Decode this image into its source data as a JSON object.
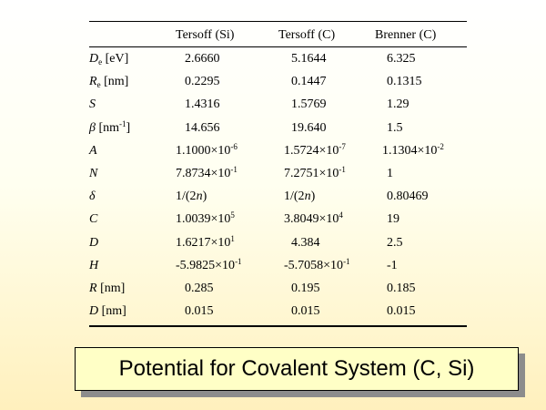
{
  "table": {
    "columns": [
      "Tersoff (Si)",
      "Tersoff (C)",
      "Brenner (C)"
    ],
    "rows": [
      {
        "param": {
          "sym": "D",
          "sub": "e",
          "unit": " [eV]",
          "unit_pre": "",
          "unit_sup": "",
          "unit_post": ""
        },
        "v": [
          {
            "t": "2.6660"
          },
          {
            "t": "5.1644"
          },
          {
            "t": "6.325"
          }
        ]
      },
      {
        "param": {
          "sym": "R",
          "sub": "e",
          "unit": " [nm]",
          "unit_pre": "",
          "unit_sup": "",
          "unit_post": ""
        },
        "v": [
          {
            "t": "0.2295"
          },
          {
            "t": "0.1447"
          },
          {
            "t": "0.1315"
          }
        ]
      },
      {
        "param": {
          "sym": "S",
          "sub": "",
          "unit": "",
          "unit_pre": "",
          "unit_sup": "",
          "unit_post": ""
        },
        "v": [
          {
            "t": "1.4316"
          },
          {
            "t": "1.5769"
          },
          {
            "t": "1.29"
          }
        ]
      },
      {
        "param": {
          "sym": "β",
          "sub": "",
          "unit": "",
          "unit_pre": " [nm",
          "unit_sup": "-1",
          "unit_post": "]"
        },
        "v": [
          {
            "t": "14.656"
          },
          {
            "t": "19.640"
          },
          {
            "t": "1.5"
          }
        ]
      },
      {
        "param": {
          "sym": "A",
          "sub": "",
          "unit": "",
          "unit_pre": "",
          "unit_sup": "",
          "unit_post": ""
        },
        "v": [
          {
            "m": "1.1000×10",
            "e": "-6"
          },
          {
            "m": "1.5724×10",
            "e": "-7"
          },
          {
            "m": "1.1304×10",
            "e": "-2"
          }
        ]
      },
      {
        "param": {
          "sym": "N",
          "sub": "",
          "unit": "",
          "unit_pre": "",
          "unit_sup": "",
          "unit_post": ""
        },
        "v": [
          {
            "m": "7.8734×10",
            "e": "-1"
          },
          {
            "m": "7.2751×10",
            "e": "-1"
          },
          {
            "t": "1"
          }
        ]
      },
      {
        "param": {
          "sym": "δ",
          "sub": "",
          "unit": "",
          "unit_pre": "",
          "unit_sup": "",
          "unit_post": ""
        },
        "v": [
          {
            "pre": "1/(2",
            "it": "n",
            "post": ")"
          },
          {
            "pre": "1/(2",
            "it": "n",
            "post": ")"
          },
          {
            "t": "0.80469"
          }
        ]
      },
      {
        "param": {
          "sym": "C",
          "sub": "",
          "unit": "",
          "unit_pre": "",
          "unit_sup": "",
          "unit_post": ""
        },
        "v": [
          {
            "m": "1.0039×10",
            "e": "5"
          },
          {
            "m": "3.8049×10",
            "e": "4"
          },
          {
            "t": "19"
          }
        ]
      },
      {
        "param": {
          "sym": "D",
          "sub": "",
          "unit": "",
          "unit_pre": "",
          "unit_sup": "",
          "unit_post": ""
        },
        "v": [
          {
            "m": "1.6217×10",
            "e": "1"
          },
          {
            "t": "4.384"
          },
          {
            "t": "2.5"
          }
        ]
      },
      {
        "param": {
          "sym": "H",
          "sub": "",
          "unit": "",
          "unit_pre": "",
          "unit_sup": "",
          "unit_post": ""
        },
        "v": [
          {
            "m": "-5.9825×10",
            "e": "-1"
          },
          {
            "m": "-5.7058×10",
            "e": "-1"
          },
          {
            "t": "-1"
          }
        ]
      },
      {
        "param": {
          "sym": "R",
          "sub": "",
          "unit": " [nm]",
          "unit_pre": "",
          "unit_sup": "",
          "unit_post": ""
        },
        "v": [
          {
            "t": "0.285"
          },
          {
            "t": "0.195"
          },
          {
            "t": "0.185"
          }
        ]
      },
      {
        "param": {
          "sym": "D",
          "sub": "",
          "unit": " [nm]",
          "unit_pre": "",
          "unit_sup": "",
          "unit_post": ""
        },
        "v": [
          {
            "t": "0.015"
          },
          {
            "t": "0.015"
          },
          {
            "t": "0.015"
          }
        ]
      }
    ]
  },
  "caption": "Potential for Covalent System (C, Si)"
}
